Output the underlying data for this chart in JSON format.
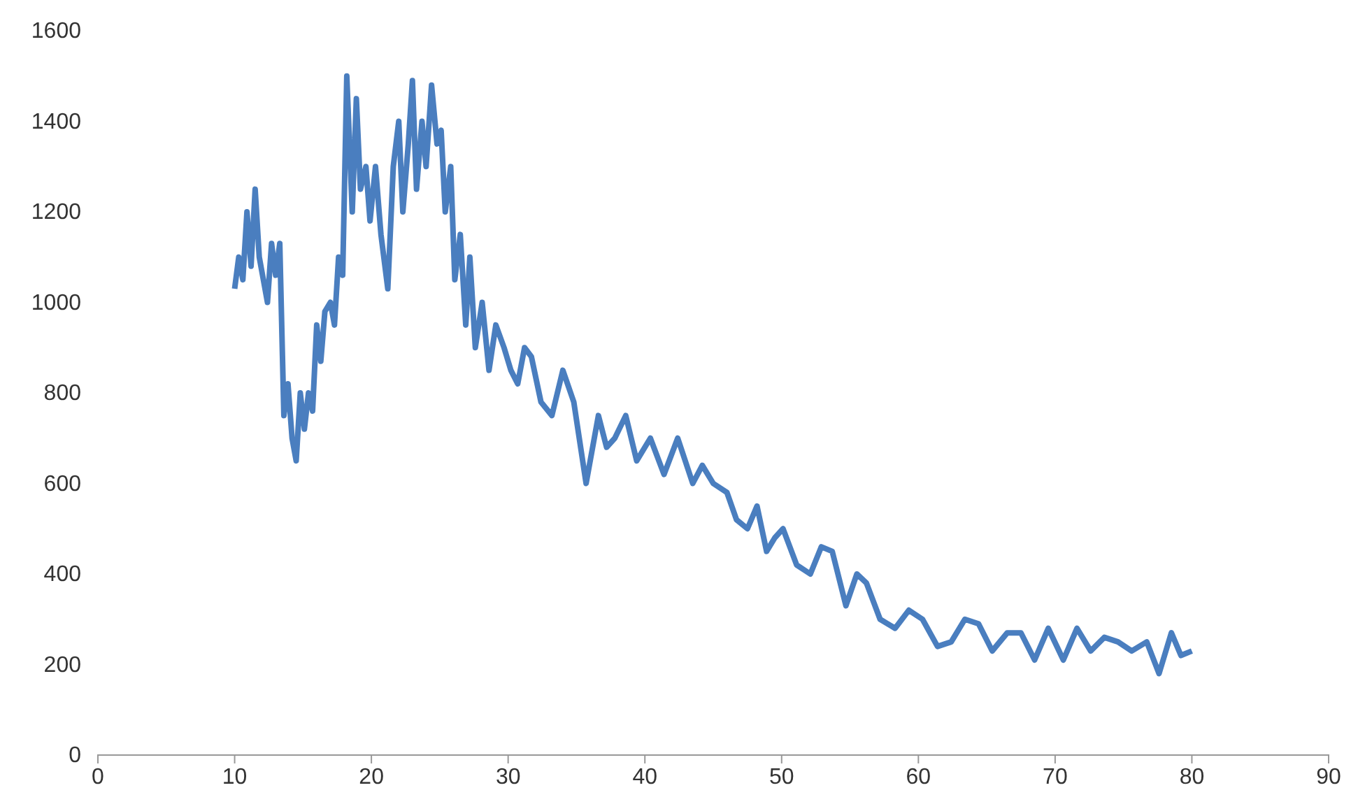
{
  "chart_data": {
    "type": "line",
    "xlim": [
      0,
      90
    ],
    "xticks": [
      0,
      10,
      20,
      30,
      40,
      50,
      60,
      70,
      80,
      90
    ],
    "ylim": [
      0,
      1600
    ],
    "yticks": [
      0,
      200,
      400,
      600,
      800,
      1000,
      1200,
      1400,
      1600
    ],
    "grid": false,
    "marker": "none",
    "line_style": "solid",
    "series": [
      {
        "color": "#4a7ebf",
        "x": [
          10,
          10.3,
          10.6,
          10.9,
          11.2,
          11.5,
          11.8,
          12.1,
          12.4,
          12.7,
          13,
          13.3,
          13.6,
          13.9,
          14.2,
          14.5,
          14.8,
          15.1,
          15.4,
          15.7,
          16,
          16.3,
          16.6,
          17,
          17.3,
          17.6,
          17.9,
          18.2,
          18.6,
          18.9,
          19.2,
          19.6,
          19.9,
          20.3,
          20.7,
          21.2,
          21.6,
          22,
          22.3,
          22.7,
          23,
          23.3,
          23.7,
          24,
          24.4,
          24.8,
          25.1,
          25.4,
          25.8,
          26.1,
          26.5,
          26.9,
          27.2,
          27.6,
          28.1,
          28.6,
          29.1,
          29.7,
          30.2,
          30.7,
          31.2,
          31.7,
          32.4,
          33.2,
          34,
          34.8,
          35.7,
          36.6,
          37.2,
          37.8,
          38.6,
          39.4,
          40.4,
          41.4,
          42.4,
          43.5,
          44.2,
          45,
          46,
          46.7,
          47.5,
          48.2,
          48.9,
          49.5,
          50.1,
          51.1,
          52.1,
          52.9,
          53.7,
          54.7,
          55.5,
          56.2,
          57.2,
          58.3,
          59.3,
          60.3,
          61.4,
          62.4,
          63.4,
          64.4,
          65.4,
          66.5,
          67.5,
          68.5,
          69.5,
          70.6,
          71.6,
          72.6,
          73.6,
          74.6,
          75.6,
          76.7,
          77.6,
          78.5,
          79.2,
          80
        ],
        "values": [
          1030,
          1100,
          1050,
          1200,
          1080,
          1250,
          1100,
          1050,
          1000,
          1130,
          1060,
          1130,
          750,
          820,
          700,
          650,
          800,
          720,
          800,
          760,
          950,
          870,
          980,
          1000,
          950,
          1100,
          1060,
          1500,
          1200,
          1450,
          1250,
          1300,
          1180,
          1300,
          1150,
          1030,
          1300,
          1400,
          1200,
          1350,
          1490,
          1250,
          1400,
          1300,
          1480,
          1350,
          1380,
          1200,
          1300,
          1050,
          1150,
          950,
          1100,
          900,
          1000,
          850,
          950,
          900,
          850,
          820,
          900,
          880,
          780,
          750,
          850,
          780,
          600,
          750,
          680,
          700,
          750,
          650,
          700,
          620,
          700,
          600,
          640,
          600,
          580,
          520,
          500,
          550,
          450,
          480,
          500,
          420,
          400,
          460,
          450,
          330,
          400,
          380,
          300,
          280,
          320,
          300,
          240,
          250,
          300,
          290,
          230,
          270,
          270,
          210,
          280,
          210,
          280,
          230,
          260,
          250,
          230,
          250,
          180,
          270,
          220,
          230
        ]
      }
    ]
  }
}
